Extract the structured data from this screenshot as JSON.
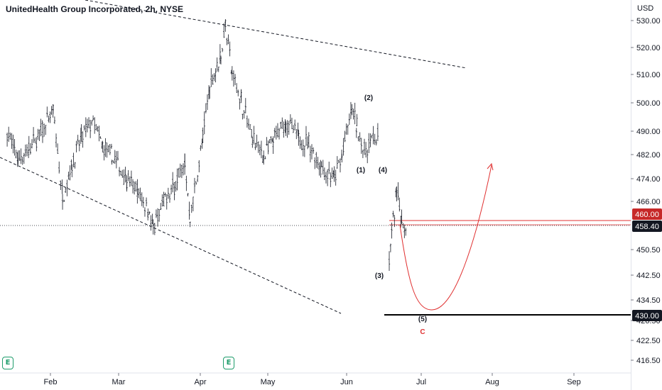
{
  "header": {
    "title": "UnitedHealth Group Incorporated, 2h, NYSE",
    "currency": "USD"
  },
  "events": [
    {
      "month": "Feb",
      "icon": "earnings-icon",
      "label": "E"
    },
    {
      "month": "Apr",
      "icon": "earnings-icon",
      "label": "E"
    }
  ],
  "chart_data": {
    "type": "candlestick",
    "title": "UnitedHealth Group Incorporated, 2h, NYSE",
    "y_unit": "USD",
    "ylim": [
      413,
      538
    ],
    "y_ticks": [
      "530.00",
      "520.00",
      "510.00",
      "500.00",
      "490.00",
      "482.00",
      "474.00",
      "466.00",
      "458.00",
      "450.50",
      "442.50",
      "434.50",
      "426.50",
      "422.50",
      "416.50"
    ],
    "x_ticks": [
      "Feb",
      "Mar",
      "Apr",
      "May",
      "Jun",
      "Jul",
      "Aug",
      "Sep"
    ],
    "price_path": [
      {
        "t": "Jan 16",
        "p": 492
      },
      {
        "t": "Jan 20",
        "p": 483
      },
      {
        "t": "Jan 24",
        "p": 486
      },
      {
        "t": "Jan 29",
        "p": 493
      },
      {
        "t": "Feb 2",
        "p": 499
      },
      {
        "t": "Feb 6",
        "p": 470
      },
      {
        "t": "Feb 10",
        "p": 481
      },
      {
        "t": "Feb 14",
        "p": 490
      },
      {
        "t": "Feb 19",
        "p": 496
      },
      {
        "t": "Feb 23",
        "p": 487
      },
      {
        "t": "Feb 27",
        "p": 484
      },
      {
        "t": "Mar 4",
        "p": 476
      },
      {
        "t": "Mar 8",
        "p": 472
      },
      {
        "t": "Mar 12",
        "p": 466
      },
      {
        "t": "Mar 14",
        "p": 459
      },
      {
        "t": "Mar 18",
        "p": 468
      },
      {
        "t": "Mar 22",
        "p": 474
      },
      {
        "t": "Mar 26",
        "p": 481
      },
      {
        "t": "Mar 28",
        "p": 463
      },
      {
        "t": "Apr 2",
        "p": 490
      },
      {
        "t": "Apr 5",
        "p": 508
      },
      {
        "t": "Apr 10",
        "p": 518
      },
      {
        "t": "Apr 12",
        "p": 529
      },
      {
        "t": "Apr 15",
        "p": 512
      },
      {
        "t": "Apr 19",
        "p": 503
      },
      {
        "t": "Apr 24",
        "p": 490
      },
      {
        "t": "Apr 29",
        "p": 484
      },
      {
        "t": "May 3",
        "p": 489
      },
      {
        "t": "May 8",
        "p": 496
      },
      {
        "t": "May 13",
        "p": 490
      },
      {
        "t": "May 17",
        "p": 488
      },
      {
        "t": "May 22",
        "p": 480
      },
      {
        "t": "May 27",
        "p": 476
      },
      {
        "t": "May 30",
        "p": 484
      },
      {
        "t": "Jun 3",
        "p": 500
      },
      {
        "t": "Jun 5",
        "p": 494
      },
      {
        "t": "Jun 8",
        "p": 485
      },
      {
        "t": "Jun 11",
        "p": 490
      },
      {
        "t": "Jun 14",
        "p": 490
      }
    ],
    "gap_path": [
      {
        "t": "Jun 18",
        "p": 448
      },
      {
        "t": "Jun 19",
        "p": 458
      },
      {
        "t": "Jun 21",
        "p": 472
      },
      {
        "t": "Jun 23",
        "p": 462
      },
      {
        "t": "Jun 25",
        "p": 458.4
      }
    ],
    "current_price": "458.40",
    "target_level": "460.00",
    "support_level": "430.00",
    "wave_labels": [
      "(1)",
      "(2)",
      "(3)",
      "(4)",
      "(5)"
    ],
    "wave_c_label": "C",
    "colors": {
      "candles": "#131722",
      "projection": "#e03131",
      "target_badge": "#c62828",
      "price_badge": "#131722",
      "support_badge": "#131722",
      "trendline": "#131722",
      "event_badge": "#1e9c6b"
    }
  }
}
